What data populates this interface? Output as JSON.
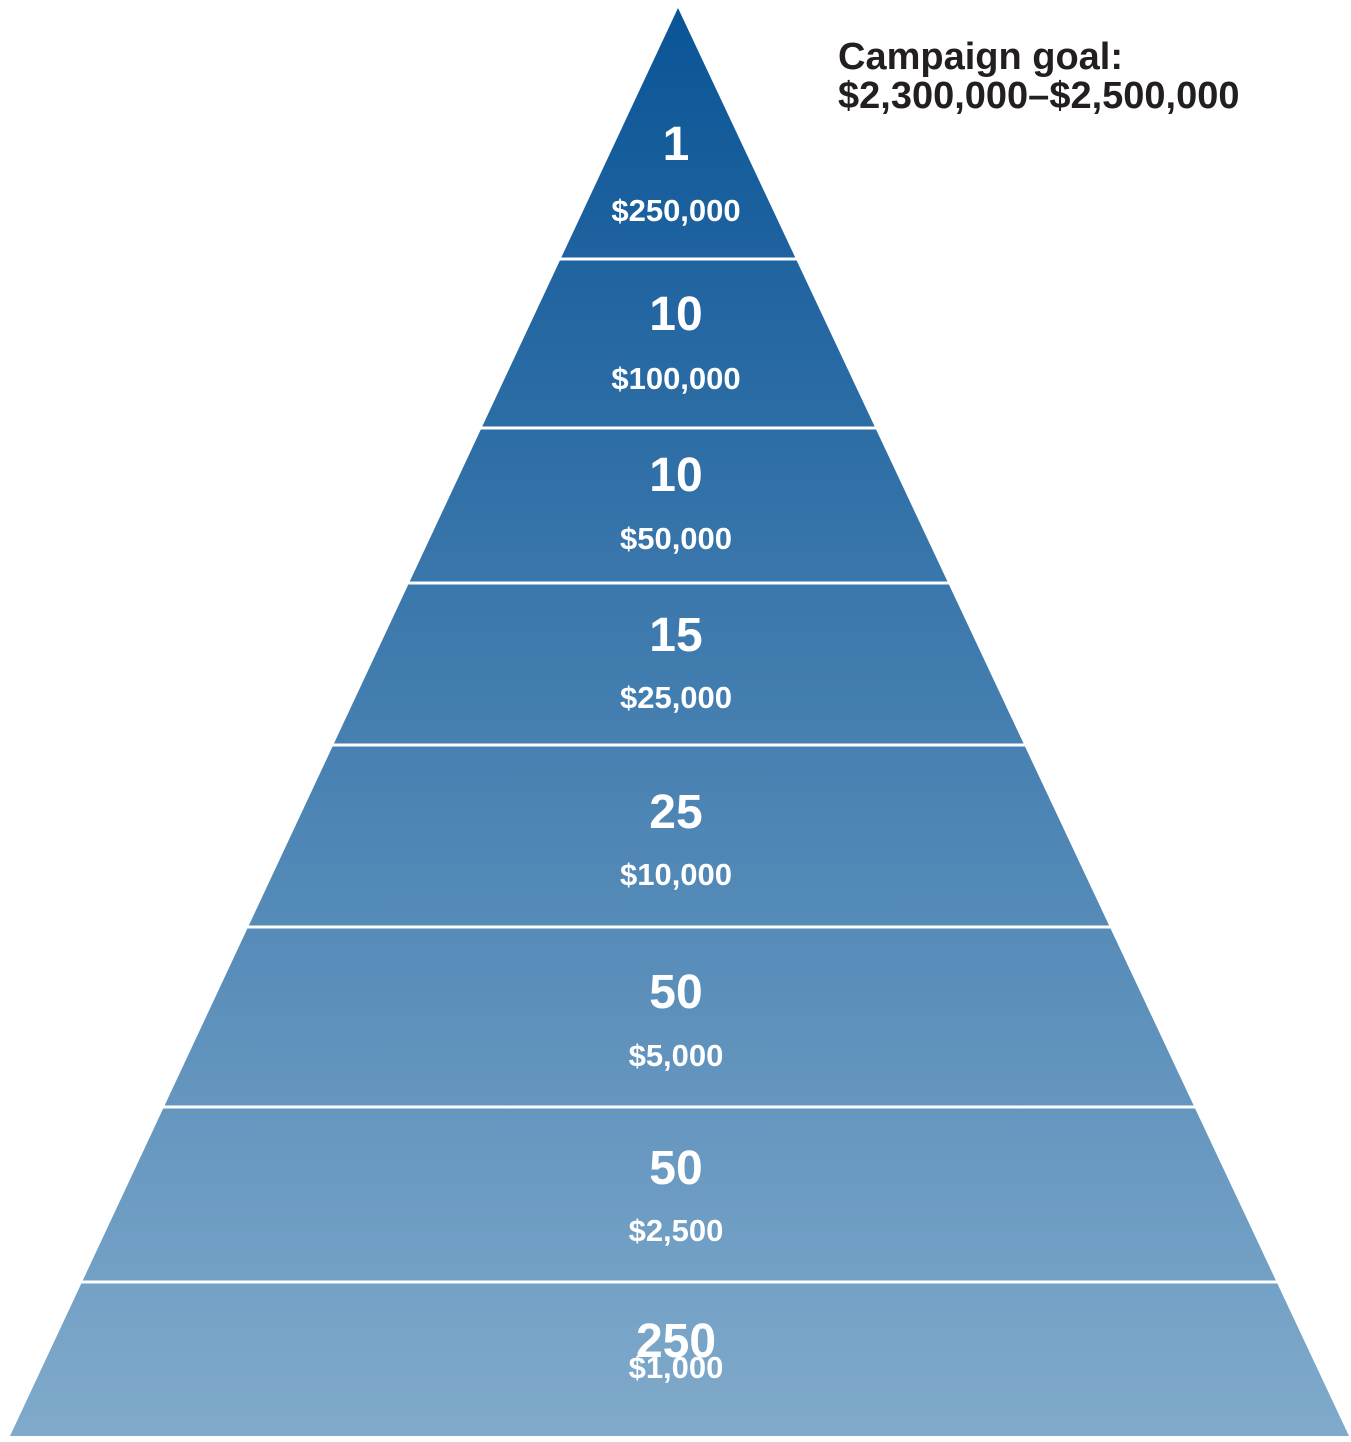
{
  "goal": {
    "label": "Campaign goal:",
    "range": "$2,300,000–$2,500,000"
  },
  "colors": {
    "top": "#0a5496",
    "bottom": "#80aacb",
    "divider": "#ffffff"
  },
  "tiers": [
    {
      "count": "1",
      "amount": "$250,000"
    },
    {
      "count": "10",
      "amount": "$100,000"
    },
    {
      "count": "10",
      "amount": "$50,000"
    },
    {
      "count": "15",
      "amount": "$25,000"
    },
    {
      "count": "25",
      "amount": "$10,000"
    },
    {
      "count": "50",
      "amount": "$5,000"
    },
    {
      "count": "50",
      "amount": "$2,500"
    },
    {
      "count": "250",
      "amount": "$1,000"
    }
  ]
}
